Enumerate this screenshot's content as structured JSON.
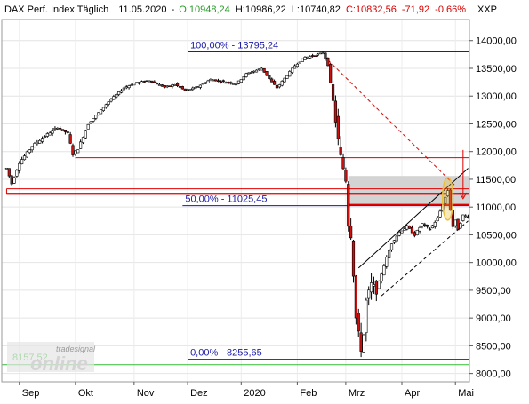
{
  "header": {
    "instrument": "DAX Perf. Index Täglich",
    "date": "11.05.2020",
    "open": "O:10948,24",
    "high": "H:10986,22",
    "low": "L:10740,82",
    "close": "C:10832,56",
    "change": "-71,92",
    "change_pct": "-0,66%",
    "currency": "XXP"
  },
  "colors": {
    "up": "#ffffff",
    "down": "#cc1111",
    "fib_line": "#1a1aa6",
    "resistance": "#e00000",
    "support_green": "#33bb33",
    "zone_fill": "#d3d3d3",
    "ellipse": "#e8c040"
  },
  "watermark": {
    "brand_top": "tradesignal",
    "brand_main": "online"
  },
  "chart_data": {
    "type": "candlestick",
    "ylim": [
      7850,
      14380
    ],
    "yticks": [
      8000,
      8500,
      9000,
      9500,
      10000,
      10500,
      11000,
      11500,
      12000,
      12500,
      13000,
      13500,
      14000
    ],
    "ytick_labels": [
      "8000,00",
      "8500,00",
      "9000,00",
      "9500,00",
      "10000,00",
      "10500,00",
      "11000,00",
      "11500,00",
      "12000,00",
      "12500,00",
      "13000,00",
      "13500,00",
      "14000,00"
    ],
    "month_labels": [
      {
        "label": "Sep",
        "bar": 5
      },
      {
        "label": "Okt",
        "bar": 27
      },
      {
        "label": "Nov",
        "bar": 50
      },
      {
        "label": "Dez",
        "bar": 71
      },
      {
        "label": "2020",
        "bar": 92
      },
      {
        "label": "Feb",
        "bar": 114
      },
      {
        "label": "Mrz",
        "bar": 133
      },
      {
        "label": "Apr",
        "bar": 155
      },
      {
        "label": "Mai",
        "bar": 176
      }
    ],
    "total_bars": 182,
    "anchors": [
      [
        0,
        11700
      ],
      [
        2,
        11420
      ],
      [
        5,
        11800
      ],
      [
        10,
        12100
      ],
      [
        15,
        12280
      ],
      [
        20,
        12440
      ],
      [
        24,
        12330
      ],
      [
        26,
        11950
      ],
      [
        28,
        12050
      ],
      [
        32,
        12500
      ],
      [
        40,
        12900
      ],
      [
        46,
        13150
      ],
      [
        50,
        13230
      ],
      [
        56,
        13280
      ],
      [
        62,
        13160
      ],
      [
        66,
        13210
      ],
      [
        70,
        13100
      ],
      [
        74,
        13150
      ],
      [
        80,
        13300
      ],
      [
        86,
        13250
      ],
      [
        90,
        13220
      ],
      [
        94,
        13400
      ],
      [
        97,
        13450
      ],
      [
        100,
        13500
      ],
      [
        104,
        13250
      ],
      [
        106,
        13150
      ],
      [
        109,
        13320
      ],
      [
        113,
        13550
      ],
      [
        117,
        13700
      ],
      [
        120,
        13720
      ],
      [
        124,
        13780
      ],
      [
        126,
        13560
      ],
      [
        128,
        12900
      ],
      [
        130,
        12200
      ],
      [
        131,
        11900
      ],
      [
        132,
        11700
      ],
      [
        133,
        11500
      ],
      [
        134,
        10700
      ],
      [
        135,
        10500
      ],
      [
        136,
        9800
      ],
      [
        137,
        9000
      ],
      [
        138,
        8700
      ],
      [
        139,
        8450
      ],
      [
        140,
        8700
      ],
      [
        141,
        9300
      ],
      [
        143,
        9600
      ],
      [
        145,
        9500
      ],
      [
        148,
        9950
      ],
      [
        151,
        10350
      ],
      [
        154,
        10550
      ],
      [
        157,
        10650
      ],
      [
        160,
        10500
      ],
      [
        163,
        10700
      ],
      [
        166,
        10600
      ],
      [
        169,
        10800
      ],
      [
        171,
        11050
      ],
      [
        173,
        11300
      ],
      [
        174,
        10950
      ],
      [
        175,
        10650
      ],
      [
        176,
        10750
      ],
      [
        177,
        10600
      ],
      [
        179,
        10850
      ],
      [
        181,
        10830
      ]
    ],
    "fibonacci": [
      {
        "label": "100,00% - 13795,24",
        "value": 13795.24
      },
      {
        "label": "50,00% - 11025,45",
        "value": 11025.45
      },
      {
        "label": "0,00% - 8255,65",
        "value": 8255.65
      }
    ],
    "support_green": {
      "label": "8157,52",
      "value": 8157.52
    },
    "resistance_lines": [
      11890,
      11330,
      11250,
      11230,
      11040
    ],
    "gray_zone": [
      11040,
      11560
    ],
    "channel_upper": [
      [
        138,
        9900
      ],
      [
        181,
        11700
      ]
    ],
    "channel_lower": [
      [
        147,
        9400
      ],
      [
        181,
        10750
      ]
    ],
    "dashed_trend": [
      [
        126,
        13650
      ],
      [
        176,
        11380
      ]
    ]
  }
}
